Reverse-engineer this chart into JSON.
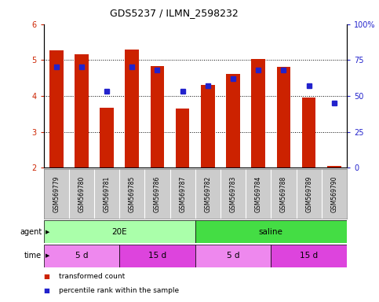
{
  "title": "GDS5237 / ILMN_2598232",
  "samples": [
    "GSM569779",
    "GSM569780",
    "GSM569781",
    "GSM569785",
    "GSM569786",
    "GSM569787",
    "GSM569782",
    "GSM569783",
    "GSM569784",
    "GSM569788",
    "GSM569789",
    "GSM569790"
  ],
  "bar_values": [
    5.28,
    5.17,
    3.67,
    5.3,
    4.83,
    3.65,
    4.3,
    4.62,
    5.02,
    4.8,
    3.95,
    2.05
  ],
  "bar_bottom": 2.0,
  "percentile_values": [
    70,
    70,
    53,
    70,
    68,
    53,
    57,
    62,
    68,
    68,
    57,
    45
  ],
  "ylim_left": [
    2,
    6
  ],
  "ylim_right": [
    0,
    100
  ],
  "yticks_left": [
    2,
    3,
    4,
    5,
    6
  ],
  "yticks_right": [
    0,
    25,
    50,
    75,
    100
  ],
  "yticklabels_right": [
    "0",
    "25",
    "50",
    "75",
    "100%"
  ],
  "bar_color": "#cc2200",
  "dot_color": "#2222cc",
  "agent_labels": [
    {
      "label": "20E",
      "start": 0,
      "end": 6,
      "color": "#aaffaa"
    },
    {
      "label": "saline",
      "start": 6,
      "end": 12,
      "color": "#44dd44"
    }
  ],
  "time_labels": [
    {
      "label": "5 d",
      "start": 0,
      "end": 3,
      "color": "#ee88ee"
    },
    {
      "label": "15 d",
      "start": 3,
      "end": 6,
      "color": "#dd44dd"
    },
    {
      "label": "5 d",
      "start": 6,
      "end": 9,
      "color": "#ee88ee"
    },
    {
      "label": "15 d",
      "start": 9,
      "end": 12,
      "color": "#dd44dd"
    }
  ],
  "legend_items": [
    {
      "label": "transformed count",
      "color": "#cc2200"
    },
    {
      "label": "percentile rank within the sample",
      "color": "#2222cc"
    }
  ],
  "agent_row_label": "agent",
  "time_row_label": "time",
  "bg_color": "#ffffff",
  "tick_label_color_left": "#cc2200",
  "tick_label_color_right": "#2222cc",
  "sample_bg_color": "#cccccc",
  "grid_yticks": [
    3,
    4,
    5
  ]
}
